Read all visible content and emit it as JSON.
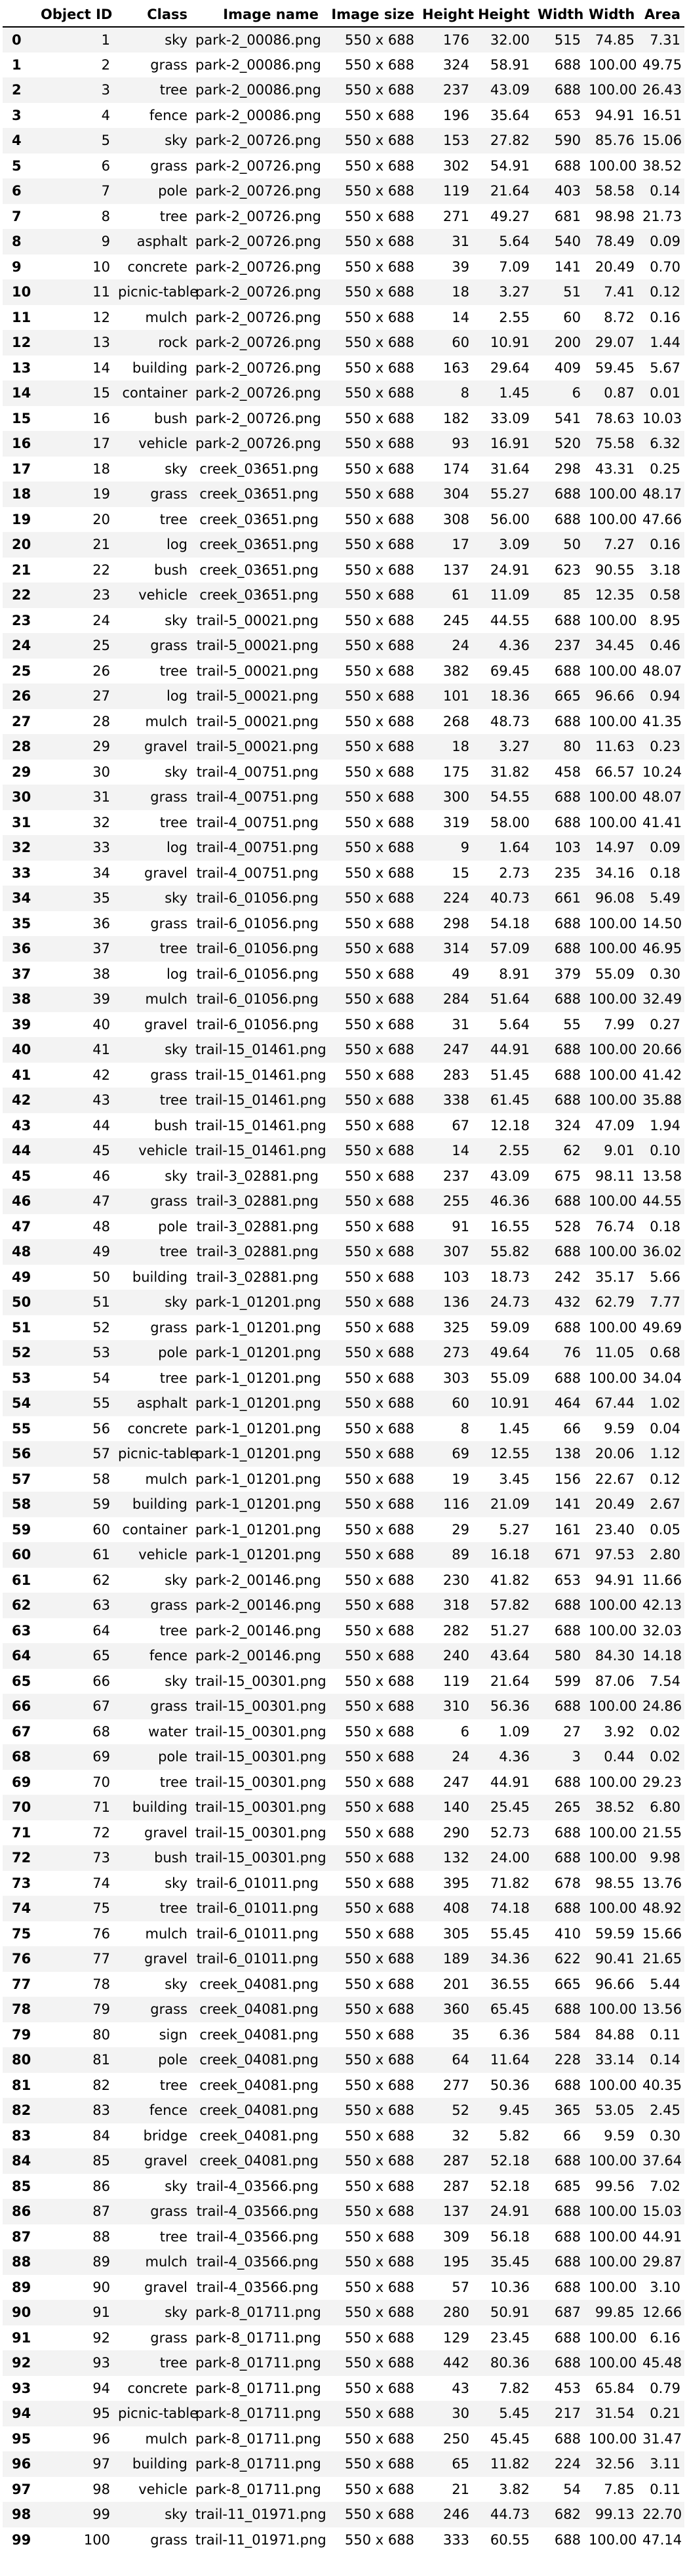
{
  "table": {
    "headers": [
      "",
      "Object ID",
      "Class",
      "Image name",
      "Image size",
      "Height",
      "Height",
      "Width",
      "Width",
      "Area"
    ],
    "rows": [
      [
        "0",
        "1",
        "sky",
        "park-2_00086.png",
        "550 x 688",
        "176",
        "32.00",
        "515",
        "74.85",
        "7.31"
      ],
      [
        "1",
        "2",
        "grass",
        "park-2_00086.png",
        "550 x 688",
        "324",
        "58.91",
        "688",
        "100.00",
        "49.75"
      ],
      [
        "2",
        "3",
        "tree",
        "park-2_00086.png",
        "550 x 688",
        "237",
        "43.09",
        "688",
        "100.00",
        "26.43"
      ],
      [
        "3",
        "4",
        "fence",
        "park-2_00086.png",
        "550 x 688",
        "196",
        "35.64",
        "653",
        "94.91",
        "16.51"
      ],
      [
        "4",
        "5",
        "sky",
        "park-2_00726.png",
        "550 x 688",
        "153",
        "27.82",
        "590",
        "85.76",
        "15.06"
      ],
      [
        "5",
        "6",
        "grass",
        "park-2_00726.png",
        "550 x 688",
        "302",
        "54.91",
        "688",
        "100.00",
        "38.52"
      ],
      [
        "6",
        "7",
        "pole",
        "park-2_00726.png",
        "550 x 688",
        "119",
        "21.64",
        "403",
        "58.58",
        "0.14"
      ],
      [
        "7",
        "8",
        "tree",
        "park-2_00726.png",
        "550 x 688",
        "271",
        "49.27",
        "681",
        "98.98",
        "21.73"
      ],
      [
        "8",
        "9",
        "asphalt",
        "park-2_00726.png",
        "550 x 688",
        "31",
        "5.64",
        "540",
        "78.49",
        "0.09"
      ],
      [
        "9",
        "10",
        "concrete",
        "park-2_00726.png",
        "550 x 688",
        "39",
        "7.09",
        "141",
        "20.49",
        "0.70"
      ],
      [
        "10",
        "11",
        "picnic-table",
        "park-2_00726.png",
        "550 x 688",
        "18",
        "3.27",
        "51",
        "7.41",
        "0.12"
      ],
      [
        "11",
        "12",
        "mulch",
        "park-2_00726.png",
        "550 x 688",
        "14",
        "2.55",
        "60",
        "8.72",
        "0.16"
      ],
      [
        "12",
        "13",
        "rock",
        "park-2_00726.png",
        "550 x 688",
        "60",
        "10.91",
        "200",
        "29.07",
        "1.44"
      ],
      [
        "13",
        "14",
        "building",
        "park-2_00726.png",
        "550 x 688",
        "163",
        "29.64",
        "409",
        "59.45",
        "5.67"
      ],
      [
        "14",
        "15",
        "container",
        "park-2_00726.png",
        "550 x 688",
        "8",
        "1.45",
        "6",
        "0.87",
        "0.01"
      ],
      [
        "15",
        "16",
        "bush",
        "park-2_00726.png",
        "550 x 688",
        "182",
        "33.09",
        "541",
        "78.63",
        "10.03"
      ],
      [
        "16",
        "17",
        "vehicle",
        "park-2_00726.png",
        "550 x 688",
        "93",
        "16.91",
        "520",
        "75.58",
        "6.32"
      ],
      [
        "17",
        "18",
        "sky",
        "creek_03651.png",
        "550 x 688",
        "174",
        "31.64",
        "298",
        "43.31",
        "0.25"
      ],
      [
        "18",
        "19",
        "grass",
        "creek_03651.png",
        "550 x 688",
        "304",
        "55.27",
        "688",
        "100.00",
        "48.17"
      ],
      [
        "19",
        "20",
        "tree",
        "creek_03651.png",
        "550 x 688",
        "308",
        "56.00",
        "688",
        "100.00",
        "47.66"
      ],
      [
        "20",
        "21",
        "log",
        "creek_03651.png",
        "550 x 688",
        "17",
        "3.09",
        "50",
        "7.27",
        "0.16"
      ],
      [
        "21",
        "22",
        "bush",
        "creek_03651.png",
        "550 x 688",
        "137",
        "24.91",
        "623",
        "90.55",
        "3.18"
      ],
      [
        "22",
        "23",
        "vehicle",
        "creek_03651.png",
        "550 x 688",
        "61",
        "11.09",
        "85",
        "12.35",
        "0.58"
      ],
      [
        "23",
        "24",
        "sky",
        "trail-5_00021.png",
        "550 x 688",
        "245",
        "44.55",
        "688",
        "100.00",
        "8.95"
      ],
      [
        "24",
        "25",
        "grass",
        "trail-5_00021.png",
        "550 x 688",
        "24",
        "4.36",
        "237",
        "34.45",
        "0.46"
      ],
      [
        "25",
        "26",
        "tree",
        "trail-5_00021.png",
        "550 x 688",
        "382",
        "69.45",
        "688",
        "100.00",
        "48.07"
      ],
      [
        "26",
        "27",
        "log",
        "trail-5_00021.png",
        "550 x 688",
        "101",
        "18.36",
        "665",
        "96.66",
        "0.94"
      ],
      [
        "27",
        "28",
        "mulch",
        "trail-5_00021.png",
        "550 x 688",
        "268",
        "48.73",
        "688",
        "100.00",
        "41.35"
      ],
      [
        "28",
        "29",
        "gravel",
        "trail-5_00021.png",
        "550 x 688",
        "18",
        "3.27",
        "80",
        "11.63",
        "0.23"
      ],
      [
        "29",
        "30",
        "sky",
        "trail-4_00751.png",
        "550 x 688",
        "175",
        "31.82",
        "458",
        "66.57",
        "10.24"
      ],
      [
        "30",
        "31",
        "grass",
        "trail-4_00751.png",
        "550 x 688",
        "300",
        "54.55",
        "688",
        "100.00",
        "48.07"
      ],
      [
        "31",
        "32",
        "tree",
        "trail-4_00751.png",
        "550 x 688",
        "319",
        "58.00",
        "688",
        "100.00",
        "41.41"
      ],
      [
        "32",
        "33",
        "log",
        "trail-4_00751.png",
        "550 x 688",
        "9",
        "1.64",
        "103",
        "14.97",
        "0.09"
      ],
      [
        "33",
        "34",
        "gravel",
        "trail-4_00751.png",
        "550 x 688",
        "15",
        "2.73",
        "235",
        "34.16",
        "0.18"
      ],
      [
        "34",
        "35",
        "sky",
        "trail-6_01056.png",
        "550 x 688",
        "224",
        "40.73",
        "661",
        "96.08",
        "5.49"
      ],
      [
        "35",
        "36",
        "grass",
        "trail-6_01056.png",
        "550 x 688",
        "298",
        "54.18",
        "688",
        "100.00",
        "14.50"
      ],
      [
        "36",
        "37",
        "tree",
        "trail-6_01056.png",
        "550 x 688",
        "314",
        "57.09",
        "688",
        "100.00",
        "46.95"
      ],
      [
        "37",
        "38",
        "log",
        "trail-6_01056.png",
        "550 x 688",
        "49",
        "8.91",
        "379",
        "55.09",
        "0.30"
      ],
      [
        "38",
        "39",
        "mulch",
        "trail-6_01056.png",
        "550 x 688",
        "284",
        "51.64",
        "688",
        "100.00",
        "32.49"
      ],
      [
        "39",
        "40",
        "gravel",
        "trail-6_01056.png",
        "550 x 688",
        "31",
        "5.64",
        "55",
        "7.99",
        "0.27"
      ],
      [
        "40",
        "41",
        "sky",
        "trail-15_01461.png",
        "550 x 688",
        "247",
        "44.91",
        "688",
        "100.00",
        "20.66"
      ],
      [
        "41",
        "42",
        "grass",
        "trail-15_01461.png",
        "550 x 688",
        "283",
        "51.45",
        "688",
        "100.00",
        "41.42"
      ],
      [
        "42",
        "43",
        "tree",
        "trail-15_01461.png",
        "550 x 688",
        "338",
        "61.45",
        "688",
        "100.00",
        "35.88"
      ],
      [
        "43",
        "44",
        "bush",
        "trail-15_01461.png",
        "550 x 688",
        "67",
        "12.18",
        "324",
        "47.09",
        "1.94"
      ],
      [
        "44",
        "45",
        "vehicle",
        "trail-15_01461.png",
        "550 x 688",
        "14",
        "2.55",
        "62",
        "9.01",
        "0.10"
      ],
      [
        "45",
        "46",
        "sky",
        "trail-3_02881.png",
        "550 x 688",
        "237",
        "43.09",
        "675",
        "98.11",
        "13.58"
      ],
      [
        "46",
        "47",
        "grass",
        "trail-3_02881.png",
        "550 x 688",
        "255",
        "46.36",
        "688",
        "100.00",
        "44.55"
      ],
      [
        "47",
        "48",
        "pole",
        "trail-3_02881.png",
        "550 x 688",
        "91",
        "16.55",
        "528",
        "76.74",
        "0.18"
      ],
      [
        "48",
        "49",
        "tree",
        "trail-3_02881.png",
        "550 x 688",
        "307",
        "55.82",
        "688",
        "100.00",
        "36.02"
      ],
      [
        "49",
        "50",
        "building",
        "trail-3_02881.png",
        "550 x 688",
        "103",
        "18.73",
        "242",
        "35.17",
        "5.66"
      ],
      [
        "50",
        "51",
        "sky",
        "park-1_01201.png",
        "550 x 688",
        "136",
        "24.73",
        "432",
        "62.79",
        "7.77"
      ],
      [
        "51",
        "52",
        "grass",
        "park-1_01201.png",
        "550 x 688",
        "325",
        "59.09",
        "688",
        "100.00",
        "49.69"
      ],
      [
        "52",
        "53",
        "pole",
        "park-1_01201.png",
        "550 x 688",
        "273",
        "49.64",
        "76",
        "11.05",
        "0.68"
      ],
      [
        "53",
        "54",
        "tree",
        "park-1_01201.png",
        "550 x 688",
        "303",
        "55.09",
        "688",
        "100.00",
        "34.04"
      ],
      [
        "54",
        "55",
        "asphalt",
        "park-1_01201.png",
        "550 x 688",
        "60",
        "10.91",
        "464",
        "67.44",
        "1.02"
      ],
      [
        "55",
        "56",
        "concrete",
        "park-1_01201.png",
        "550 x 688",
        "8",
        "1.45",
        "66",
        "9.59",
        "0.04"
      ],
      [
        "56",
        "57",
        "picnic-table",
        "park-1_01201.png",
        "550 x 688",
        "69",
        "12.55",
        "138",
        "20.06",
        "1.12"
      ],
      [
        "57",
        "58",
        "mulch",
        "park-1_01201.png",
        "550 x 688",
        "19",
        "3.45",
        "156",
        "22.67",
        "0.12"
      ],
      [
        "58",
        "59",
        "building",
        "park-1_01201.png",
        "550 x 688",
        "116",
        "21.09",
        "141",
        "20.49",
        "2.67"
      ],
      [
        "59",
        "60",
        "container",
        "park-1_01201.png",
        "550 x 688",
        "29",
        "5.27",
        "161",
        "23.40",
        "0.05"
      ],
      [
        "60",
        "61",
        "vehicle",
        "park-1_01201.png",
        "550 x 688",
        "89",
        "16.18",
        "671",
        "97.53",
        "2.80"
      ],
      [
        "61",
        "62",
        "sky",
        "park-2_00146.png",
        "550 x 688",
        "230",
        "41.82",
        "653",
        "94.91",
        "11.66"
      ],
      [
        "62",
        "63",
        "grass",
        "park-2_00146.png",
        "550 x 688",
        "318",
        "57.82",
        "688",
        "100.00",
        "42.13"
      ],
      [
        "63",
        "64",
        "tree",
        "park-2_00146.png",
        "550 x 688",
        "282",
        "51.27",
        "688",
        "100.00",
        "32.03"
      ],
      [
        "64",
        "65",
        "fence",
        "park-2_00146.png",
        "550 x 688",
        "240",
        "43.64",
        "580",
        "84.30",
        "14.18"
      ],
      [
        "65",
        "66",
        "sky",
        "trail-15_00301.png",
        "550 x 688",
        "119",
        "21.64",
        "599",
        "87.06",
        "7.54"
      ],
      [
        "66",
        "67",
        "grass",
        "trail-15_00301.png",
        "550 x 688",
        "310",
        "56.36",
        "688",
        "100.00",
        "24.86"
      ],
      [
        "67",
        "68",
        "water",
        "trail-15_00301.png",
        "550 x 688",
        "6",
        "1.09",
        "27",
        "3.92",
        "0.02"
      ],
      [
        "68",
        "69",
        "pole",
        "trail-15_00301.png",
        "550 x 688",
        "24",
        "4.36",
        "3",
        "0.44",
        "0.02"
      ],
      [
        "69",
        "70",
        "tree",
        "trail-15_00301.png",
        "550 x 688",
        "247",
        "44.91",
        "688",
        "100.00",
        "29.23"
      ],
      [
        "70",
        "71",
        "building",
        "trail-15_00301.png",
        "550 x 688",
        "140",
        "25.45",
        "265",
        "38.52",
        "6.80"
      ],
      [
        "71",
        "72",
        "gravel",
        "trail-15_00301.png",
        "550 x 688",
        "290",
        "52.73",
        "688",
        "100.00",
        "21.55"
      ],
      [
        "72",
        "73",
        "bush",
        "trail-15_00301.png",
        "550 x 688",
        "132",
        "24.00",
        "688",
        "100.00",
        "9.98"
      ],
      [
        "73",
        "74",
        "sky",
        "trail-6_01011.png",
        "550 x 688",
        "395",
        "71.82",
        "678",
        "98.55",
        "13.76"
      ],
      [
        "74",
        "75",
        "tree",
        "trail-6_01011.png",
        "550 x 688",
        "408",
        "74.18",
        "688",
        "100.00",
        "48.92"
      ],
      [
        "75",
        "76",
        "mulch",
        "trail-6_01011.png",
        "550 x 688",
        "305",
        "55.45",
        "410",
        "59.59",
        "15.66"
      ],
      [
        "76",
        "77",
        "gravel",
        "trail-6_01011.png",
        "550 x 688",
        "189",
        "34.36",
        "622",
        "90.41",
        "21.65"
      ],
      [
        "77",
        "78",
        "sky",
        "creek_04081.png",
        "550 x 688",
        "201",
        "36.55",
        "665",
        "96.66",
        "5.44"
      ],
      [
        "78",
        "79",
        "grass",
        "creek_04081.png",
        "550 x 688",
        "360",
        "65.45",
        "688",
        "100.00",
        "13.56"
      ],
      [
        "79",
        "80",
        "sign",
        "creek_04081.png",
        "550 x 688",
        "35",
        "6.36",
        "584",
        "84.88",
        "0.11"
      ],
      [
        "80",
        "81",
        "pole",
        "creek_04081.png",
        "550 x 688",
        "64",
        "11.64",
        "228",
        "33.14",
        "0.14"
      ],
      [
        "81",
        "82",
        "tree",
        "creek_04081.png",
        "550 x 688",
        "277",
        "50.36",
        "688",
        "100.00",
        "40.35"
      ],
      [
        "82",
        "83",
        "fence",
        "creek_04081.png",
        "550 x 688",
        "52",
        "9.45",
        "365",
        "53.05",
        "2.45"
      ],
      [
        "83",
        "84",
        "bridge",
        "creek_04081.png",
        "550 x 688",
        "32",
        "5.82",
        "66",
        "9.59",
        "0.30"
      ],
      [
        "84",
        "85",
        "gravel",
        "creek_04081.png",
        "550 x 688",
        "287",
        "52.18",
        "688",
        "100.00",
        "37.64"
      ],
      [
        "85",
        "86",
        "sky",
        "trail-4_03566.png",
        "550 x 688",
        "287",
        "52.18",
        "685",
        "99.56",
        "7.02"
      ],
      [
        "86",
        "87",
        "grass",
        "trail-4_03566.png",
        "550 x 688",
        "137",
        "24.91",
        "688",
        "100.00",
        "15.03"
      ],
      [
        "87",
        "88",
        "tree",
        "trail-4_03566.png",
        "550 x 688",
        "309",
        "56.18",
        "688",
        "100.00",
        "44.91"
      ],
      [
        "88",
        "89",
        "mulch",
        "trail-4_03566.png",
        "550 x 688",
        "195",
        "35.45",
        "688",
        "100.00",
        "29.87"
      ],
      [
        "89",
        "90",
        "gravel",
        "trail-4_03566.png",
        "550 x 688",
        "57",
        "10.36",
        "688",
        "100.00",
        "3.10"
      ],
      [
        "90",
        "91",
        "sky",
        "park-8_01711.png",
        "550 x 688",
        "280",
        "50.91",
        "687",
        "99.85",
        "12.66"
      ],
      [
        "91",
        "92",
        "grass",
        "park-8_01711.png",
        "550 x 688",
        "129",
        "23.45",
        "688",
        "100.00",
        "6.16"
      ],
      [
        "92",
        "93",
        "tree",
        "park-8_01711.png",
        "550 x 688",
        "442",
        "80.36",
        "688",
        "100.00",
        "45.48"
      ],
      [
        "93",
        "94",
        "concrete",
        "park-8_01711.png",
        "550 x 688",
        "43",
        "7.82",
        "453",
        "65.84",
        "0.79"
      ],
      [
        "94",
        "95",
        "picnic-table",
        "park-8_01711.png",
        "550 x 688",
        "30",
        "5.45",
        "217",
        "31.54",
        "0.21"
      ],
      [
        "95",
        "96",
        "mulch",
        "park-8_01711.png",
        "550 x 688",
        "250",
        "45.45",
        "688",
        "100.00",
        "31.47"
      ],
      [
        "96",
        "97",
        "building",
        "park-8_01711.png",
        "550 x 688",
        "65",
        "11.82",
        "224",
        "32.56",
        "3.11"
      ],
      [
        "97",
        "98",
        "vehicle",
        "park-8_01711.png",
        "550 x 688",
        "21",
        "3.82",
        "54",
        "7.85",
        "0.11"
      ],
      [
        "98",
        "99",
        "sky",
        "trail-11_01971.png",
        "550 x 688",
        "246",
        "44.73",
        "682",
        "99.13",
        "22.70"
      ],
      [
        "99",
        "100",
        "grass",
        "trail-11_01971.png",
        "550 x 688",
        "333",
        "60.55",
        "688",
        "100.00",
        "47.14"
      ]
    ]
  }
}
